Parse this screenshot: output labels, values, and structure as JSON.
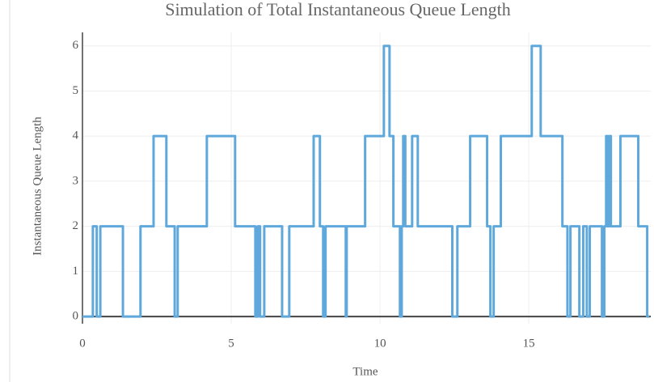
{
  "chart_data": {
    "type": "line",
    "line_shape": "hv",
    "title": "Simulation of Total Instantaneous Queue Length",
    "x_label": "Time",
    "y_label": "Instantaneous Queue Length",
    "color": "#5fa8dc",
    "grid": true,
    "xlim": [
      0,
      19.1
    ],
    "ylim": [
      -0.16,
      6.3
    ],
    "xticks": [
      0,
      5,
      10,
      15
    ],
    "yticks": [
      0,
      1,
      2,
      3,
      4,
      5,
      6
    ],
    "x": [
      0,
      0.35,
      0.48,
      0.6,
      1.36,
      1.95,
      2.39,
      2.82,
      3.1,
      3.2,
      4.18,
      5.13,
      5.81,
      5.89,
      5.97,
      6.11,
      6.71,
      6.95,
      7.77,
      7.98,
      8.09,
      8.17,
      8.85,
      8.88,
      9.5,
      10.13,
      10.32,
      10.45,
      10.67,
      10.73,
      10.78,
      10.85,
      11.08,
      11.27,
      12.43,
      12.6,
      13.03,
      13.6,
      13.71,
      13.82,
      14.06,
      15.1,
      15.4,
      16.13,
      16.3,
      16.4,
      16.7,
      16.83,
      16.95,
      17.05,
      17.46,
      17.54,
      17.6,
      17.65,
      17.7,
      17.76,
      18.08,
      18.68,
      18.98,
      19.05
    ],
    "values": [
      0,
      2,
      0,
      2,
      0,
      2,
      4,
      2,
      0,
      2,
      4,
      2,
      0,
      2,
      0,
      2,
      0,
      2,
      4,
      2,
      0,
      2,
      0,
      2,
      4,
      6,
      4,
      2,
      0,
      2,
      4,
      2,
      4,
      2,
      0,
      2,
      4,
      2,
      0,
      2,
      4,
      6,
      4,
      2,
      0,
      2,
      0,
      2,
      0,
      2,
      0,
      2,
      4,
      2,
      4,
      2,
      4,
      2,
      0,
      0
    ]
  }
}
